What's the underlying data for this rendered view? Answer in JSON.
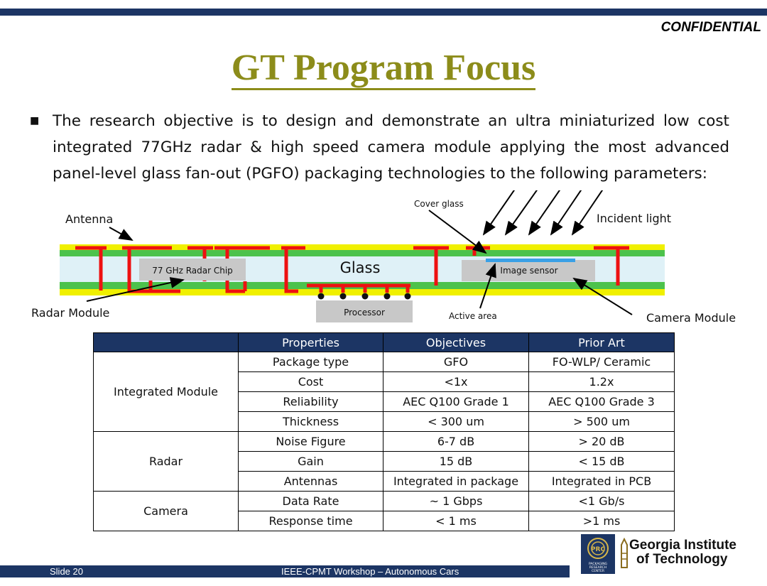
{
  "header": {
    "confidential": "CONFIDENTIAL"
  },
  "title": "GT Program Focus",
  "bullet": "The research objective is to design and demonstrate an ultra miniaturized low cost integrated 77GHz radar & high speed camera module applying the most advanced panel-level glass fan-out (PGFO) packaging technologies to the following parameters:",
  "diagram": {
    "antenna": "Antenna",
    "cover_glass": "Cover glass",
    "incident_light": "Incident light",
    "radar_chip": "77 GHz Radar Chip",
    "glass": "Glass",
    "image_sensor": "Image sensor",
    "radar_module": "Radar Module",
    "processor": "Processor",
    "active_area": "Active area",
    "camera_module": "Camera Module",
    "colors": {
      "yellow_layer": "#f0f000",
      "green_layer": "#4cc24c",
      "glass_core": "#dff1f7",
      "copper": "#ee1111",
      "chip": "#c8c8c8",
      "active_area": "#3aa0e6"
    }
  },
  "table": {
    "headers": [
      "",
      "Properties",
      "Objectives",
      "Prior Art"
    ],
    "groups": [
      {
        "name": "Integrated Module",
        "rows": [
          [
            "Package type",
            "GFO",
            "FO-WLP/ Ceramic"
          ],
          [
            "Cost",
            "<1x",
            "1.2x"
          ],
          [
            "Reliability",
            "AEC Q100 Grade 1",
            "AEC Q100 Grade 3"
          ],
          [
            "Thickness",
            "< 300 um",
            "> 500 um"
          ]
        ]
      },
      {
        "name": "Radar",
        "rows": [
          [
            "Noise Figure",
            "6-7 dB",
            "> 20 dB"
          ],
          [
            "Gain",
            "15 dB",
            "< 15 dB"
          ],
          [
            "Antennas",
            "Integrated in package",
            "Integrated in PCB"
          ]
        ]
      },
      {
        "name": "Camera",
        "rows": [
          [
            "Data Rate",
            "~ 1 Gbps",
            "<1 Gb/s"
          ],
          [
            "Response time",
            "< 1 ms",
            ">1 ms"
          ]
        ]
      }
    ]
  },
  "footer": {
    "slide": "Slide 20",
    "workshop": "IEEE-CPMT Workshop – Autonomous Cars"
  },
  "logo": {
    "prc": "PACKAGING RESEARCH CENTER",
    "gt_line1": "Georgia Institute",
    "gt_line2": "of Technology"
  },
  "theme": {
    "navy": "#1c3564",
    "olive": "#8c8c1a"
  }
}
